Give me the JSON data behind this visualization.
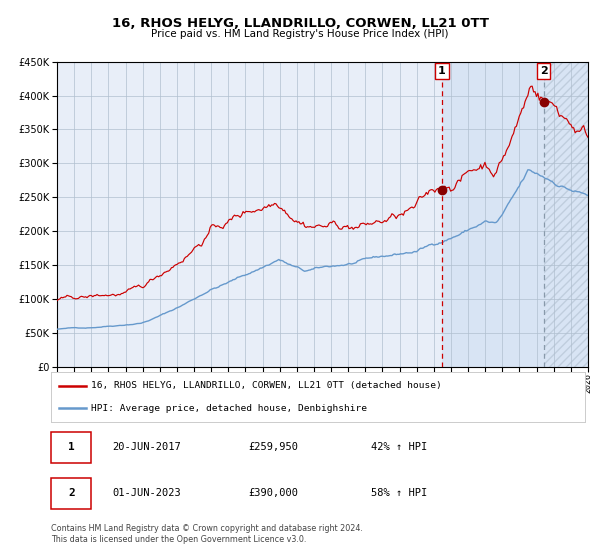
{
  "title": "16, RHOS HELYG, LLANDRILLO, CORWEN, LL21 0TT",
  "subtitle": "Price paid vs. HM Land Registry's House Price Index (HPI)",
  "legend_line1": "16, RHOS HELYG, LLANDRILLO, CORWEN, LL21 0TT (detached house)",
  "legend_line2": "HPI: Average price, detached house, Denbighshire",
  "marker1_date": "20-JUN-2017",
  "marker1_price": "£259,950",
  "marker1_hpi": "42% ↑ HPI",
  "marker1_year": 2017.47,
  "marker1_value": 259950,
  "marker2_date": "01-JUN-2023",
  "marker2_price": "£390,000",
  "marker2_hpi": "58% ↑ HPI",
  "marker2_year": 2023.42,
  "marker2_value": 390000,
  "footer1": "Contains HM Land Registry data © Crown copyright and database right 2024.",
  "footer2": "This data is licensed under the Open Government Licence v3.0.",
  "xmin": 1995,
  "xmax": 2026,
  "ymin": 0,
  "ymax": 450000,
  "red_color": "#cc0000",
  "blue_color": "#6699cc",
  "bg_color": "#e8eef8",
  "bg_color2": "#d8e4f4",
  "grid_color": "#b0bfcf"
}
